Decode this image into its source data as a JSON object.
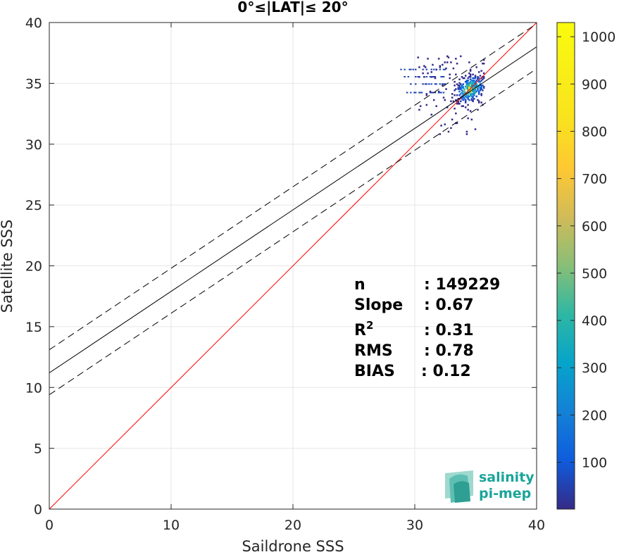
{
  "chart_data": {
    "type": "heatmap",
    "title": "0°≤|LAT|≤ 20°",
    "xlabel": "Saildrone SSS",
    "ylabel": "Satellite SSS",
    "xlim": [
      0,
      40
    ],
    "ylim": [
      0,
      40
    ],
    "xticks": [
      0,
      10,
      20,
      30,
      40
    ],
    "yticks": [
      0,
      5,
      10,
      15,
      20,
      25,
      30,
      35,
      40
    ],
    "grid": true,
    "colorbar": {
      "colormap": "parula",
      "range": [
        1,
        1030
      ],
      "ticks": [
        100,
        200,
        300,
        400,
        500,
        600,
        700,
        800,
        900,
        1000
      ]
    },
    "lines": [
      {
        "name": "one-to-one",
        "style": "solid",
        "color": "#ff0000",
        "slope": 1.0,
        "intercept": 0.0
      },
      {
        "name": "regression",
        "style": "solid",
        "color": "#000000",
        "slope": 0.67,
        "intercept": 11.2
      },
      {
        "name": "regression-plus-2-rms",
        "style": "dashed",
        "color": "#000000",
        "slope": 0.67,
        "intercept": 13.1
      },
      {
        "name": "regression-minus-2-rms",
        "style": "dashed",
        "color": "#000000",
        "slope": 0.67,
        "intercept": 9.4
      }
    ],
    "density": {
      "x_range": [
        30.2,
        35.7
      ],
      "y_range": [
        30.8,
        37.3
      ],
      "peak": [
        34.5,
        34.5
      ]
    },
    "stats": [
      {
        "label": "n",
        "value": ": 149229"
      },
      {
        "label": "Slope",
        "value": ": 0.67"
      },
      {
        "label": "R",
        "superscript": "2",
        "value": ": 0.31"
      },
      {
        "label": "RMS",
        "value": ": 0.78"
      },
      {
        "label": "BIAS",
        "value": ": 0.12"
      }
    ]
  },
  "logo": {
    "line1": "salinity",
    "line2": "pi-mep"
  }
}
